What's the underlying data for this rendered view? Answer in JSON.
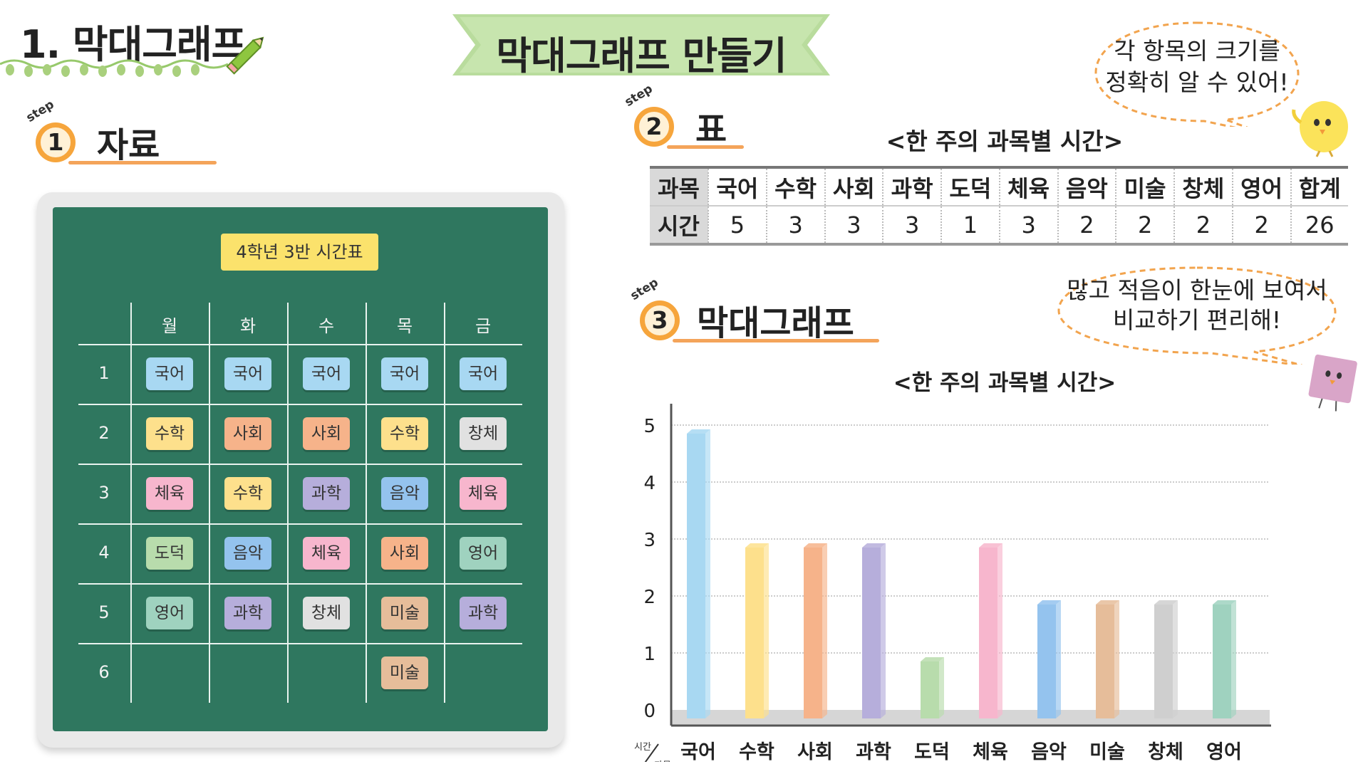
{
  "header": {
    "heading": "1. 막대그래프",
    "ribbon_title": "막대그래프 만들기"
  },
  "bubbles": {
    "top": {
      "line1": "각 항목의 크기를",
      "line2": "정확히 알 수 있어!"
    },
    "bottom": {
      "line1": "많고 적음이 한눈에 보여서",
      "line2": "비교하기 편리해!"
    }
  },
  "steps": {
    "step_word": "step",
    "step1": {
      "num": "1",
      "title": "자료"
    },
    "step2": {
      "num": "2",
      "title": "표"
    },
    "step3": {
      "num": "3",
      "title": "막대그래프"
    }
  },
  "timetable": {
    "label": "4학년 3반 시간표",
    "days": [
      "월",
      "화",
      "수",
      "목",
      "금"
    ],
    "periods": [
      "1",
      "2",
      "3",
      "4",
      "5",
      "6"
    ],
    "rows": [
      [
        "국어",
        "국어",
        "국어",
        "국어",
        "국어"
      ],
      [
        "수학",
        "사회",
        "사회",
        "수학",
        "창체"
      ],
      [
        "체육",
        "수학",
        "과학",
        "음악",
        "체육"
      ],
      [
        "도덕",
        "음악",
        "체육",
        "사회",
        "영어"
      ],
      [
        "영어",
        "과학",
        "창체",
        "미술",
        "과학"
      ],
      [
        "",
        "",
        "",
        "미술",
        ""
      ]
    ]
  },
  "subject_colors": {
    "국어": "#a8d8f2",
    "수학": "#fde08c",
    "사회": "#f6b38a",
    "과학": "#b6aedb",
    "도덕": "#b8dcac",
    "체육": "#f7b6cd",
    "음악": "#94c3ee",
    "미술": "#e6bd9a",
    "창체": "#e1e1e1",
    "영어": "#9fd2bf"
  },
  "table": {
    "title": "<한 주의 과목별 시간>",
    "row_header_subject": "과목",
    "row_header_time": "시간",
    "subjects": [
      "국어",
      "수학",
      "사회",
      "과학",
      "도덕",
      "체육",
      "음악",
      "미술",
      "창체",
      "영어",
      "합계"
    ],
    "hours": [
      "5",
      "3",
      "3",
      "3",
      "1",
      "3",
      "2",
      "2",
      "2",
      "2",
      "26"
    ]
  },
  "chart_data": {
    "type": "bar",
    "title": "<한 주의 과목별 시간>",
    "xlabel": "과목",
    "ylabel": "시간",
    "categories": [
      "국어",
      "수학",
      "사회",
      "과학",
      "도덕",
      "체육",
      "음악",
      "미술",
      "창체",
      "영어"
    ],
    "values": [
      5,
      3,
      3,
      3,
      1,
      3,
      2,
      2,
      2,
      2
    ],
    "ylim": [
      0,
      5
    ],
    "yticks": [
      "0",
      "1",
      "2",
      "3",
      "4",
      "5"
    ],
    "grid": true,
    "bar_colors": [
      "#a8d8f2",
      "#fde08c",
      "#f6b38a",
      "#b6aedb",
      "#b8dcac",
      "#f7b6cd",
      "#94c3ee",
      "#e6bd9a",
      "#cfcfcf",
      "#9fd2bf"
    ]
  }
}
